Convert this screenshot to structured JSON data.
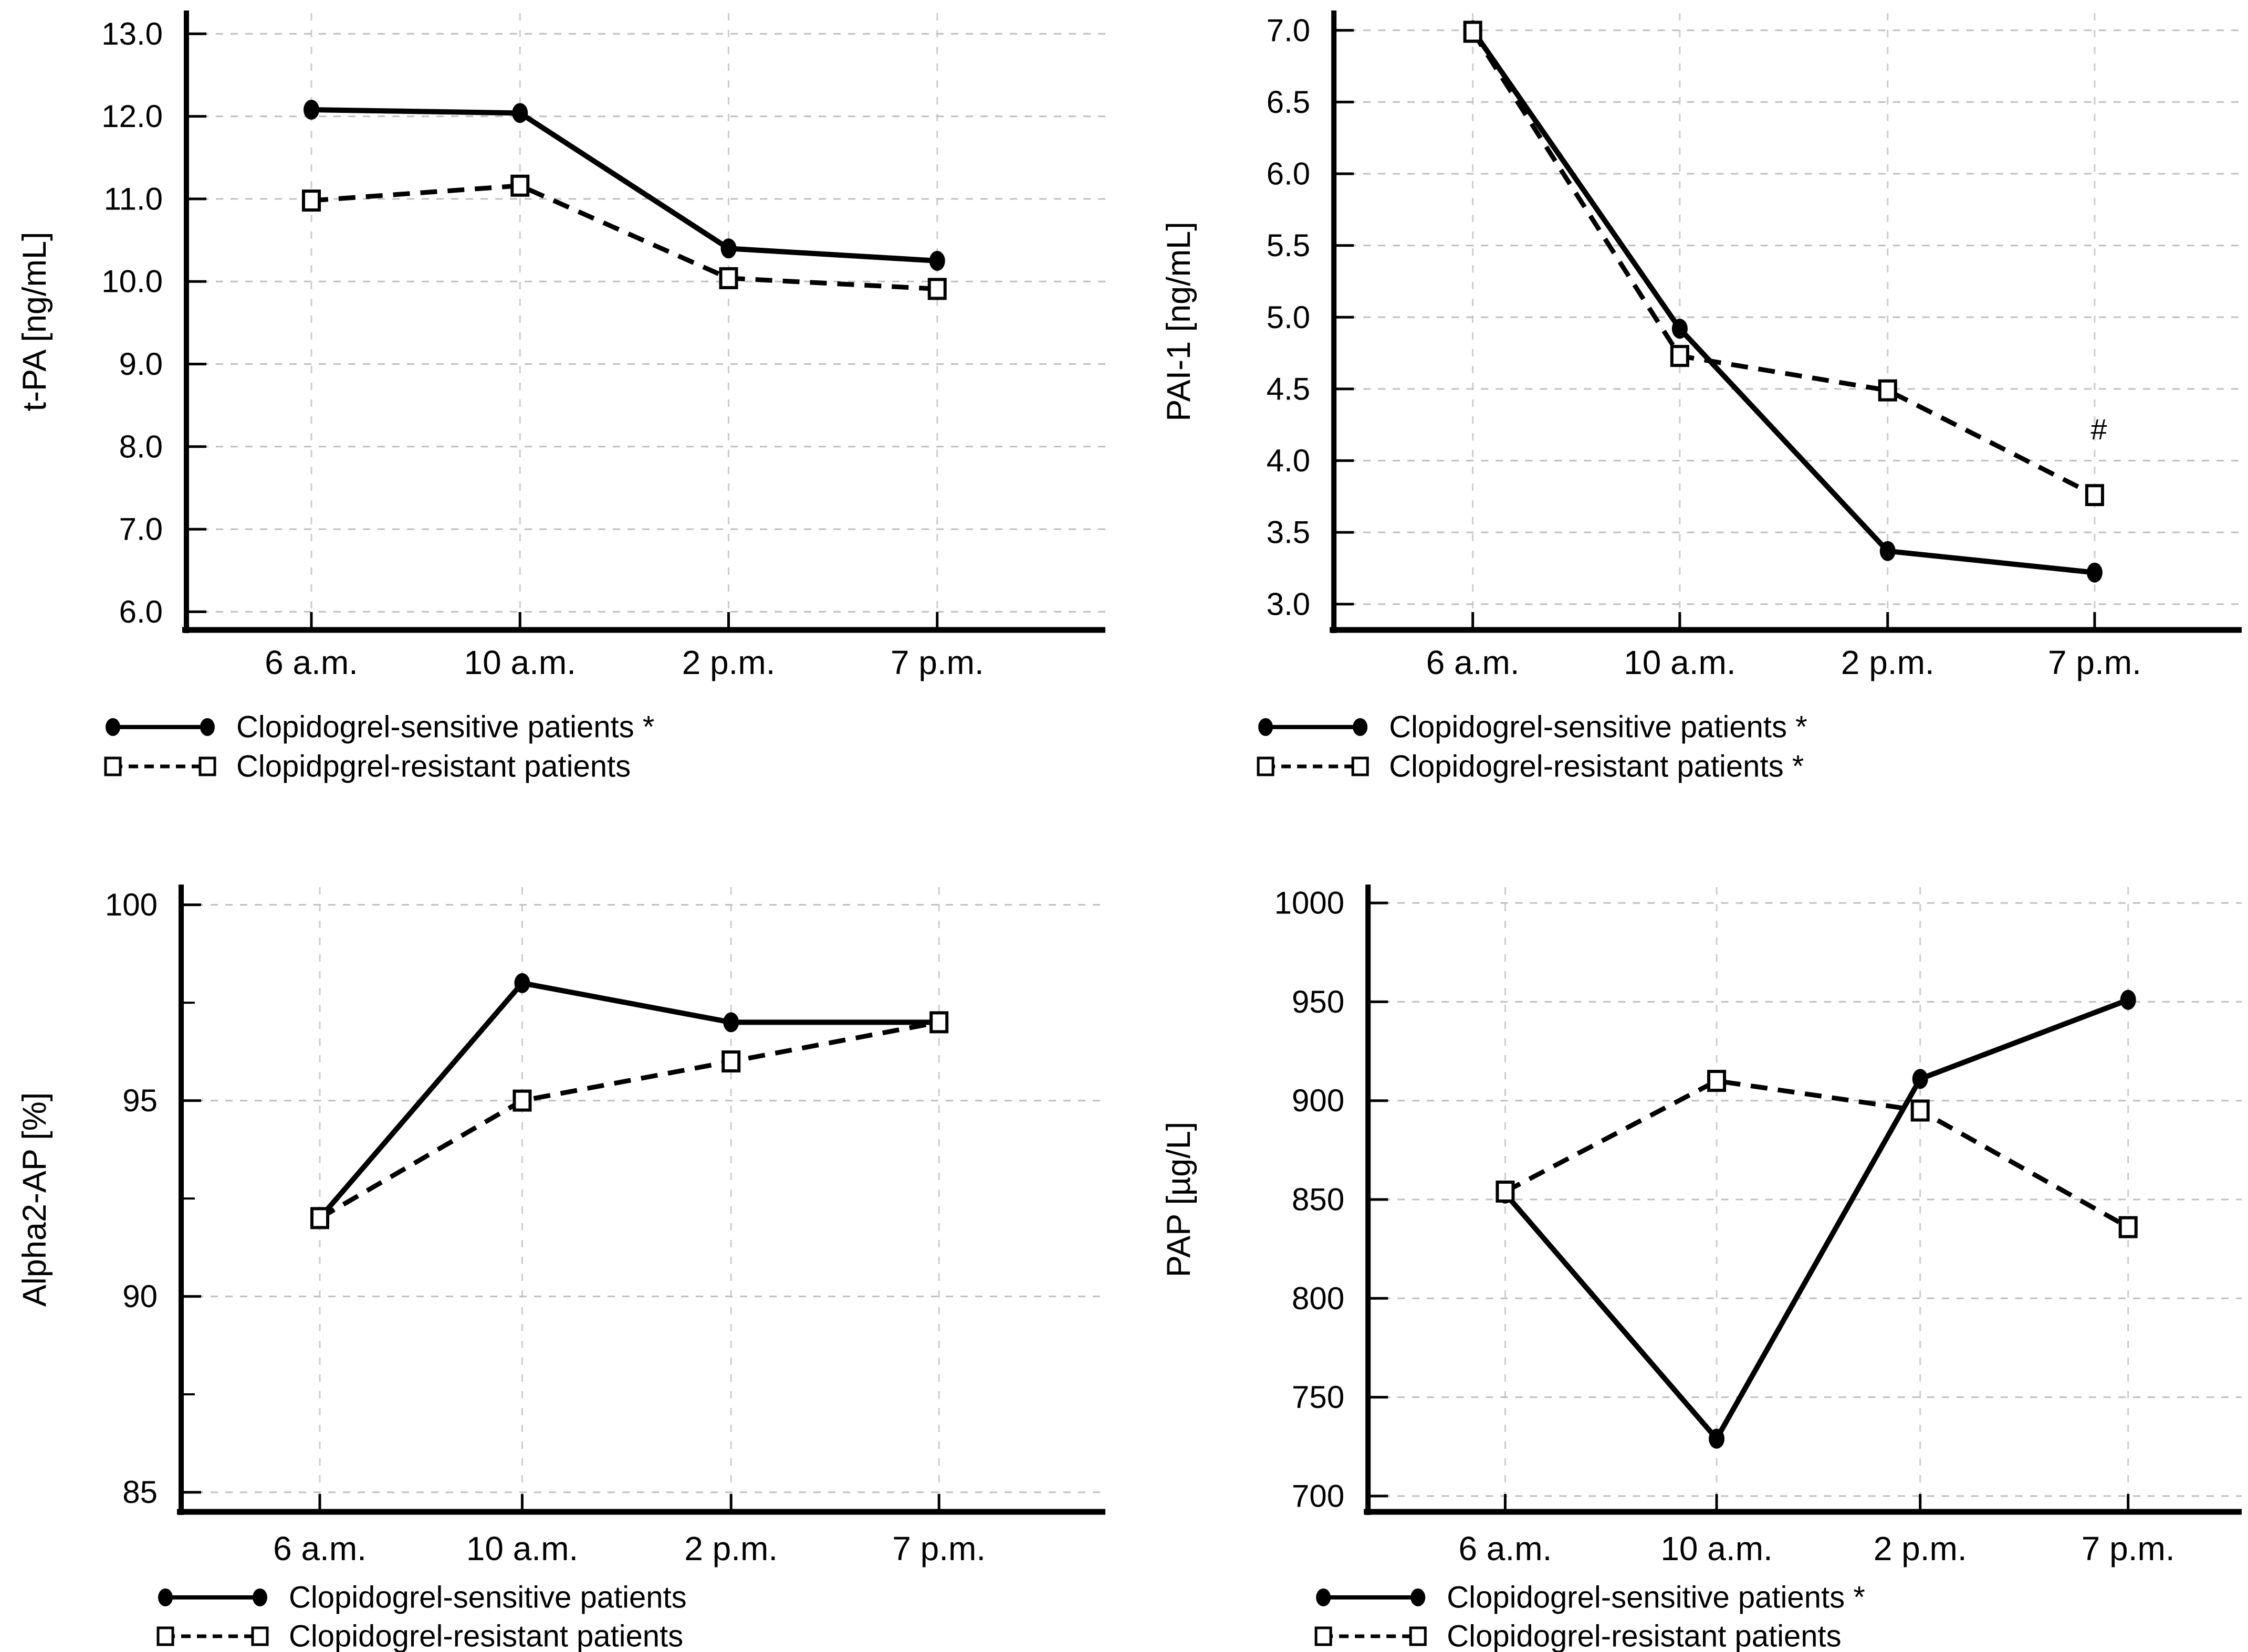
{
  "figure": {
    "background_color": "#ffffff",
    "text_color": "#000000",
    "grid_color": "#bfbfbf",
    "vgrid_color": "#cccccc",
    "series_color": "#000000"
  },
  "chart_data": [
    {
      "id": "tpa",
      "type": "line",
      "title": "",
      "ylabel": "t-PA [ng/mL]",
      "xlabel": "",
      "categories": [
        "6 a.m.",
        "10 a.m.",
        "2 p.m.",
        "7 p.m."
      ],
      "ylim": [
        5.78,
        13.25
      ],
      "ytick_values": [
        13,
        12,
        11,
        10,
        9,
        8,
        7,
        6
      ],
      "ytick_labels": [
        "13.0",
        "12.0",
        "11.0",
        "10.0",
        "9.0",
        "8.0",
        "7.0",
        "6.0"
      ],
      "minor_tick_values": [],
      "grid": true,
      "legend_position": "bottom-left",
      "series": [
        {
          "name": "Clopidogrel-sensitive patients *",
          "marker": "filled-circle",
          "line": "solid",
          "values": [
            12.08,
            12.04,
            10.4,
            10.25
          ]
        },
        {
          "name": "Clopidpgrel-resistant patients",
          "marker": "open-square",
          "line": "dashed",
          "values": [
            10.98,
            11.16,
            10.04,
            9.91
          ]
        }
      ],
      "annotations": []
    },
    {
      "id": "pai1",
      "type": "line",
      "title": "",
      "ylabel": "PAI-1 [ng/mL]",
      "xlabel": "",
      "categories": [
        "6 a.m.",
        "10 a.m.",
        "2 p.m.",
        "7 p.m."
      ],
      "ylim": [
        2.82,
        7.12
      ],
      "ytick_values": [
        7.0,
        6.5,
        6.0,
        5.5,
        5.0,
        4.5,
        4.0,
        3.5,
        3.0
      ],
      "ytick_labels": [
        "7.0",
        "6.5",
        "6.0",
        "5.5",
        "5.0",
        "4.5",
        "4.0",
        "3.5",
        "3.0"
      ],
      "minor_tick_values": [],
      "grid": true,
      "legend_position": "bottom-left",
      "series": [
        {
          "name": "Clopidogrel-sensitive patients *",
          "marker": "filled-circle",
          "line": "solid",
          "values": [
            7.0,
            4.92,
            3.37,
            3.22
          ]
        },
        {
          "name": "Clopidogrel-resistant patients *",
          "marker": "open-square",
          "line": "dashed",
          "values": [
            6.99,
            4.73,
            4.49,
            3.76
          ]
        }
      ],
      "annotations": [
        {
          "text": "#",
          "category_index": 3,
          "value": 4.22
        }
      ]
    },
    {
      "id": "alpha2ap",
      "type": "line",
      "title": "",
      "ylabel": "Alpha2-AP [%]",
      "xlabel": "",
      "categories": [
        "6 a.m.",
        "10 a.m.",
        "2 p.m.",
        "7 p.m."
      ],
      "ylim": [
        84.5,
        100.45
      ],
      "ytick_values": [
        100,
        95,
        90,
        85
      ],
      "ytick_labels": [
        "100",
        "95",
        "90",
        "85"
      ],
      "minor_tick_values": [
        97.5,
        92.5,
        87.5
      ],
      "grid": true,
      "legend_position": "bottom-left",
      "series": [
        {
          "name": "Clopidogrel-sensitive patients",
          "marker": "filled-circle",
          "line": "solid",
          "values": [
            92,
            98,
            97,
            97
          ]
        },
        {
          "name": "Clopidogrel-resistant patients",
          "marker": "open-square",
          "line": "dashed",
          "values": [
            92,
            95,
            96,
            97
          ]
        }
      ],
      "annotations": []
    },
    {
      "id": "pap",
      "type": "line",
      "title": "",
      "ylabel": "PAP [µg/L]",
      "xlabel": "",
      "categories": [
        "6 a.m.",
        "10 a.m.",
        "2 p.m.",
        "7 p.m."
      ],
      "ylim": [
        692,
        1008
      ],
      "ytick_values": [
        1000,
        950,
        900,
        850,
        800,
        750,
        700
      ],
      "ytick_labels": [
        "1000",
        "950",
        "900",
        "850",
        "800",
        "750",
        "700"
      ],
      "minor_tick_values": [],
      "grid": true,
      "legend_position": "bottom-left",
      "series": [
        {
          "name": "Clopidogrel-sensitive patients *",
          "marker": "filled-circle",
          "line": "solid",
          "values": [
            853,
            729,
            911,
            951
          ]
        },
        {
          "name": "Clopidogrel-resistant patients",
          "marker": "open-square",
          "line": "dashed",
          "values": [
            854,
            910,
            895,
            836
          ]
        }
      ],
      "annotations": []
    }
  ]
}
